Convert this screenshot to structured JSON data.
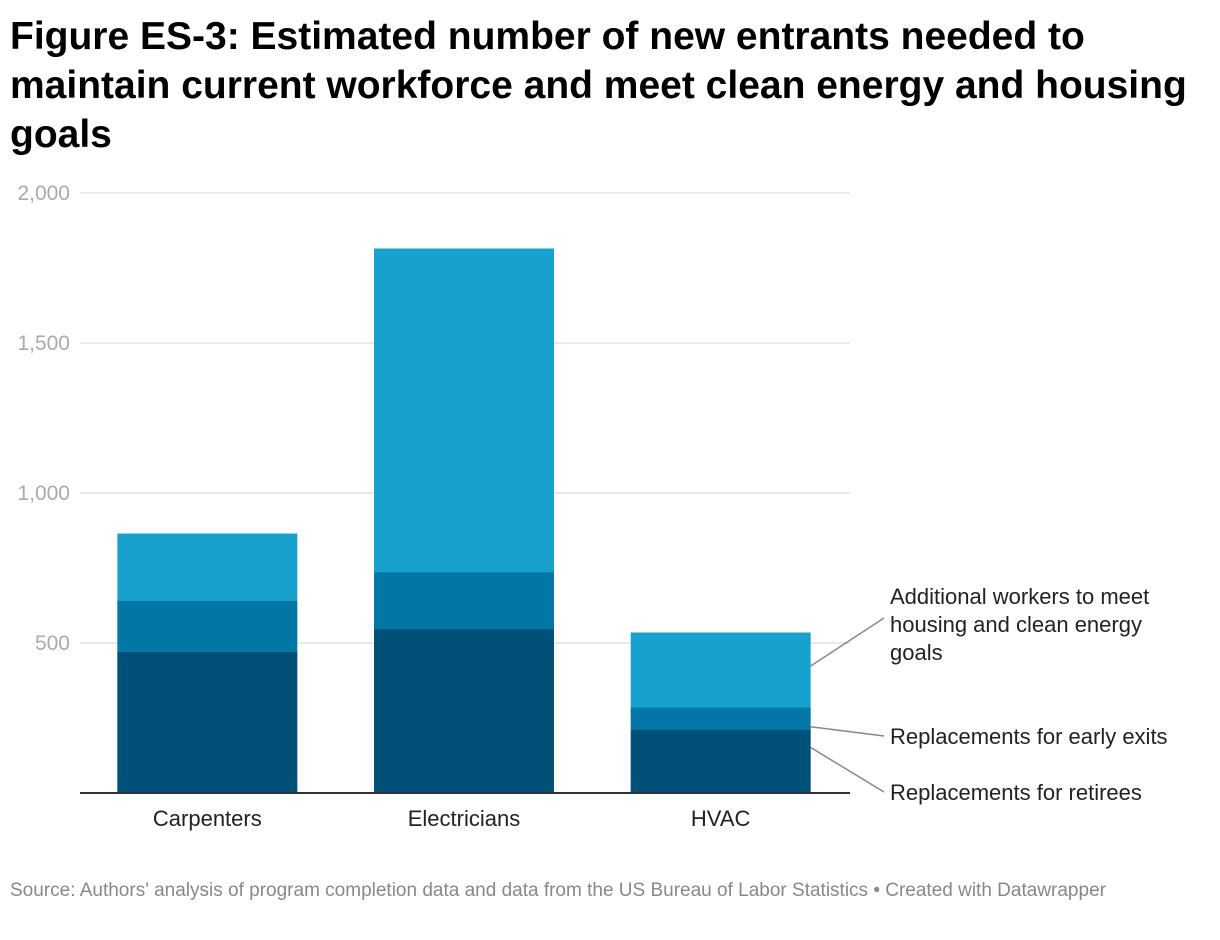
{
  "title": "Figure ES-3: Estimated number of new entrants needed to maintain current workforce and meet clean energy and housing goals",
  "footer": {
    "text": "Source: Authors' analysis of program completion data and data from the US Bureau of Labor Statistics • Created with Datawrapper"
  },
  "chart_data": {
    "type": "bar",
    "stacked": true,
    "categories": [
      "Carpenters",
      "Electricians",
      "HVAC"
    ],
    "series": [
      {
        "name": "Replacements for retirees",
        "values": [
          470,
          545,
          210
        ],
        "color": "#005078"
      },
      {
        "name": "Replacements for early exits",
        "values": [
          170,
          190,
          75
        ],
        "color": "#0276a4"
      },
      {
        "name": "Additional workers to meet housing and clean energy goals",
        "values": [
          225,
          1080,
          250
        ],
        "color": "#19a1cd"
      }
    ],
    "ylim": [
      0,
      2000
    ],
    "yticks": [
      {
        "value": 500,
        "label": "500"
      },
      {
        "value": 1000,
        "label": "1,000"
      },
      {
        "value": 1500,
        "label": "1,500"
      },
      {
        "value": 2000,
        "label": "2,000"
      }
    ],
    "grid": true,
    "legend": "inline-right",
    "legend_lines": [
      [
        "Additional workers to meet",
        "housing and clean energy",
        "goals"
      ],
      [
        "Replacements for early exits"
      ],
      [
        "Replacements for retirees"
      ]
    ],
    "colors": {
      "tick_text": "#aaaaaa",
      "grid": "#e2e2e2",
      "axis": "#333333",
      "leader": "#888888"
    }
  }
}
